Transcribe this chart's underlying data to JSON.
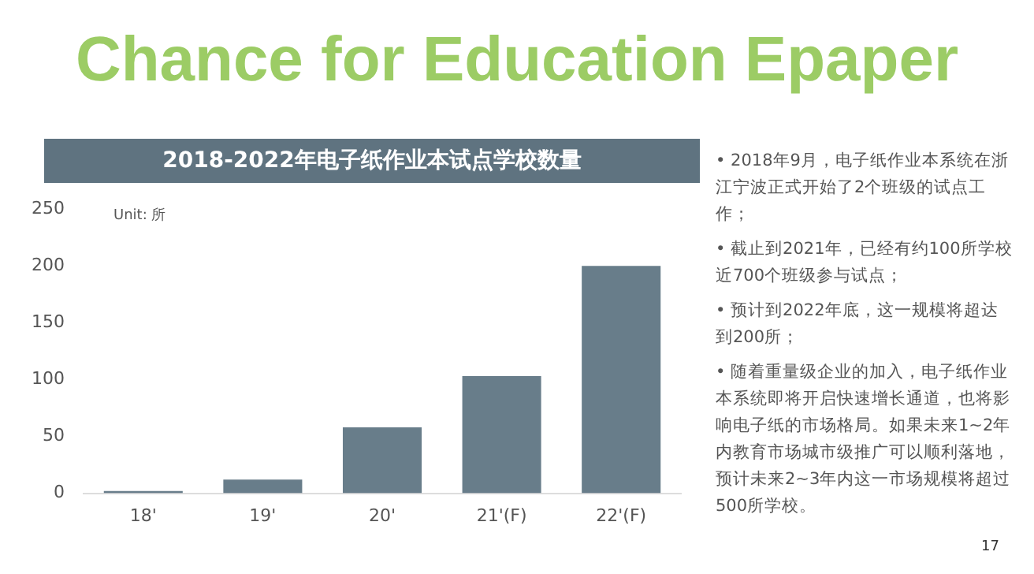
{
  "chart_data": {
    "type": "bar",
    "title": "Chance for Education Epaper",
    "subtitle": "2018-2022年电子纸作业本试点学校数量",
    "categories": [
      "18'",
      "19'",
      "20'",
      "21'(F)",
      "22'(F)"
    ],
    "values": [
      2,
      12,
      58,
      103,
      200
    ],
    "color": "#687d8a",
    "ylim": [
      0,
      250
    ],
    "yticks": [
      0,
      50,
      100,
      150,
      200,
      250
    ],
    "grid": false,
    "legend": false,
    "annotations": [
      "Unit: 所",
      "• 2018年9月，电子纸作业本系统在浙江宁波正式开始了2个班级的试点工作；",
      "• 截止到2021年，已经有约100所学校近700个班级参与试点；",
      "• 预计到2022年底，这一规模将超达到200所；",
      "• 随着重量级企业的加入，电子纸作业本系统即将开启快速增长通道，也将影响电子纸的市场格局。如果未来1~2年内教育市场城市级推广可以顺利落地，预计未来2~3年内这一市场规模将超过500所学校。",
      "17"
    ]
  }
}
